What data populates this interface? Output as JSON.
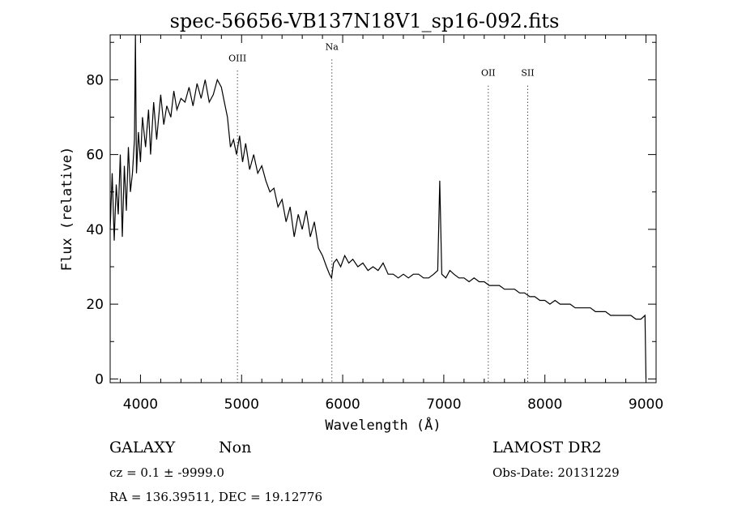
{
  "chart_data": {
    "type": "line",
    "title": "spec-56656-VB137N18V1_sp16-092.fits",
    "xlabel": "Wavelength (Å)",
    "ylabel": "Flux (relative)",
    "xlim": [
      3700,
      9100
    ],
    "ylim": [
      -1,
      92
    ],
    "xticks": [
      4000,
      5000,
      6000,
      7000,
      8000,
      9000
    ],
    "xtick_labels": [
      "4000",
      "5000",
      "6000",
      "7000",
      "8000",
      "9000"
    ],
    "yticks": [
      0,
      20,
      40,
      60,
      80
    ],
    "ytick_labels": [
      "0",
      "20",
      "40",
      "60",
      "80"
    ],
    "grid": false,
    "legend": "none",
    "lines": [
      {
        "label": "OIII",
        "x": 4959,
        "y_label": 85
      },
      {
        "label": "Na",
        "x": 5893,
        "y_label": 88
      },
      {
        "label": "OII",
        "x": 7440,
        "y_label": 81
      },
      {
        "label": "SII",
        "x": 7830,
        "y_label": 81
      }
    ],
    "series": [
      {
        "x": [
          3700,
          3720,
          3740,
          3760,
          3780,
          3800,
          3820,
          3840,
          3860,
          3880,
          3900,
          3920,
          3940,
          3950,
          3960,
          3980,
          4000,
          4020,
          4050,
          4080,
          4100,
          4130,
          4160,
          4200,
          4230,
          4260,
          4300,
          4330,
          4360,
          4400,
          4440,
          4480,
          4520,
          4560,
          4600,
          4640,
          4680,
          4720,
          4760,
          4800,
          4830,
          4860,
          4890,
          4920,
          4950,
          4980,
          5010,
          5040,
          5080,
          5120,
          5160,
          5200,
          5240,
          5280,
          5320,
          5360,
          5400,
          5440,
          5480,
          5520,
          5560,
          5600,
          5640,
          5680,
          5720,
          5760,
          5800,
          5840,
          5870,
          5890,
          5910,
          5940,
          5980,
          6020,
          6060,
          6100,
          6150,
          6200,
          6250,
          6300,
          6350,
          6400,
          6450,
          6500,
          6550,
          6600,
          6650,
          6700,
          6750,
          6800,
          6850,
          6900,
          6940,
          6960,
          6980,
          7020,
          7060,
          7100,
          7150,
          7200,
          7250,
          7300,
          7350,
          7400,
          7450,
          7500,
          7550,
          7600,
          7650,
          7700,
          7750,
          7800,
          7850,
          7900,
          7950,
          8000,
          8050,
          8100,
          8150,
          8200,
          8250,
          8300,
          8350,
          8400,
          8450,
          8500,
          8550,
          8600,
          8650,
          8700,
          8750,
          8800,
          8850,
          8900,
          8950,
          8990,
          9000
        ],
        "y": [
          40,
          55,
          37,
          52,
          44,
          60,
          38,
          57,
          45,
          62,
          50,
          55,
          64,
          92,
          55,
          66,
          58,
          70,
          62,
          72,
          60,
          74,
          64,
          76,
          68,
          73,
          70,
          77,
          72,
          75,
          74,
          78,
          73,
          79,
          75,
          80,
          74,
          76,
          80,
          78,
          74,
          70,
          62,
          64,
          60,
          65,
          58,
          63,
          56,
          60,
          55,
          57,
          53,
          50,
          51,
          46,
          48,
          42,
          46,
          38,
          44,
          40,
          45,
          38,
          42,
          35,
          33,
          30,
          28,
          27,
          31,
          32,
          30,
          33,
          31,
          32,
          30,
          31,
          29,
          30,
          29,
          31,
          28,
          28,
          27,
          28,
          27,
          28,
          28,
          27,
          27,
          28,
          29,
          53,
          28,
          27,
          29,
          28,
          27,
          27,
          26,
          27,
          26,
          26,
          25,
          25,
          25,
          24,
          24,
          24,
          23,
          23,
          22,
          22,
          21,
          21,
          20,
          21,
          20,
          20,
          20,
          19,
          19,
          19,
          19,
          18,
          18,
          18,
          17,
          17,
          17,
          17,
          17,
          16,
          16,
          17,
          0
        ]
      }
    ]
  },
  "info": {
    "object_class": "GALAXY",
    "subclass": "Non",
    "cz": "cz = 0.1 ± -9999.0",
    "coords": "RA = 136.39511, DEC =  19.12776",
    "survey": "LAMOST DR2",
    "obs_date": "Obs-Date: 20131229"
  }
}
